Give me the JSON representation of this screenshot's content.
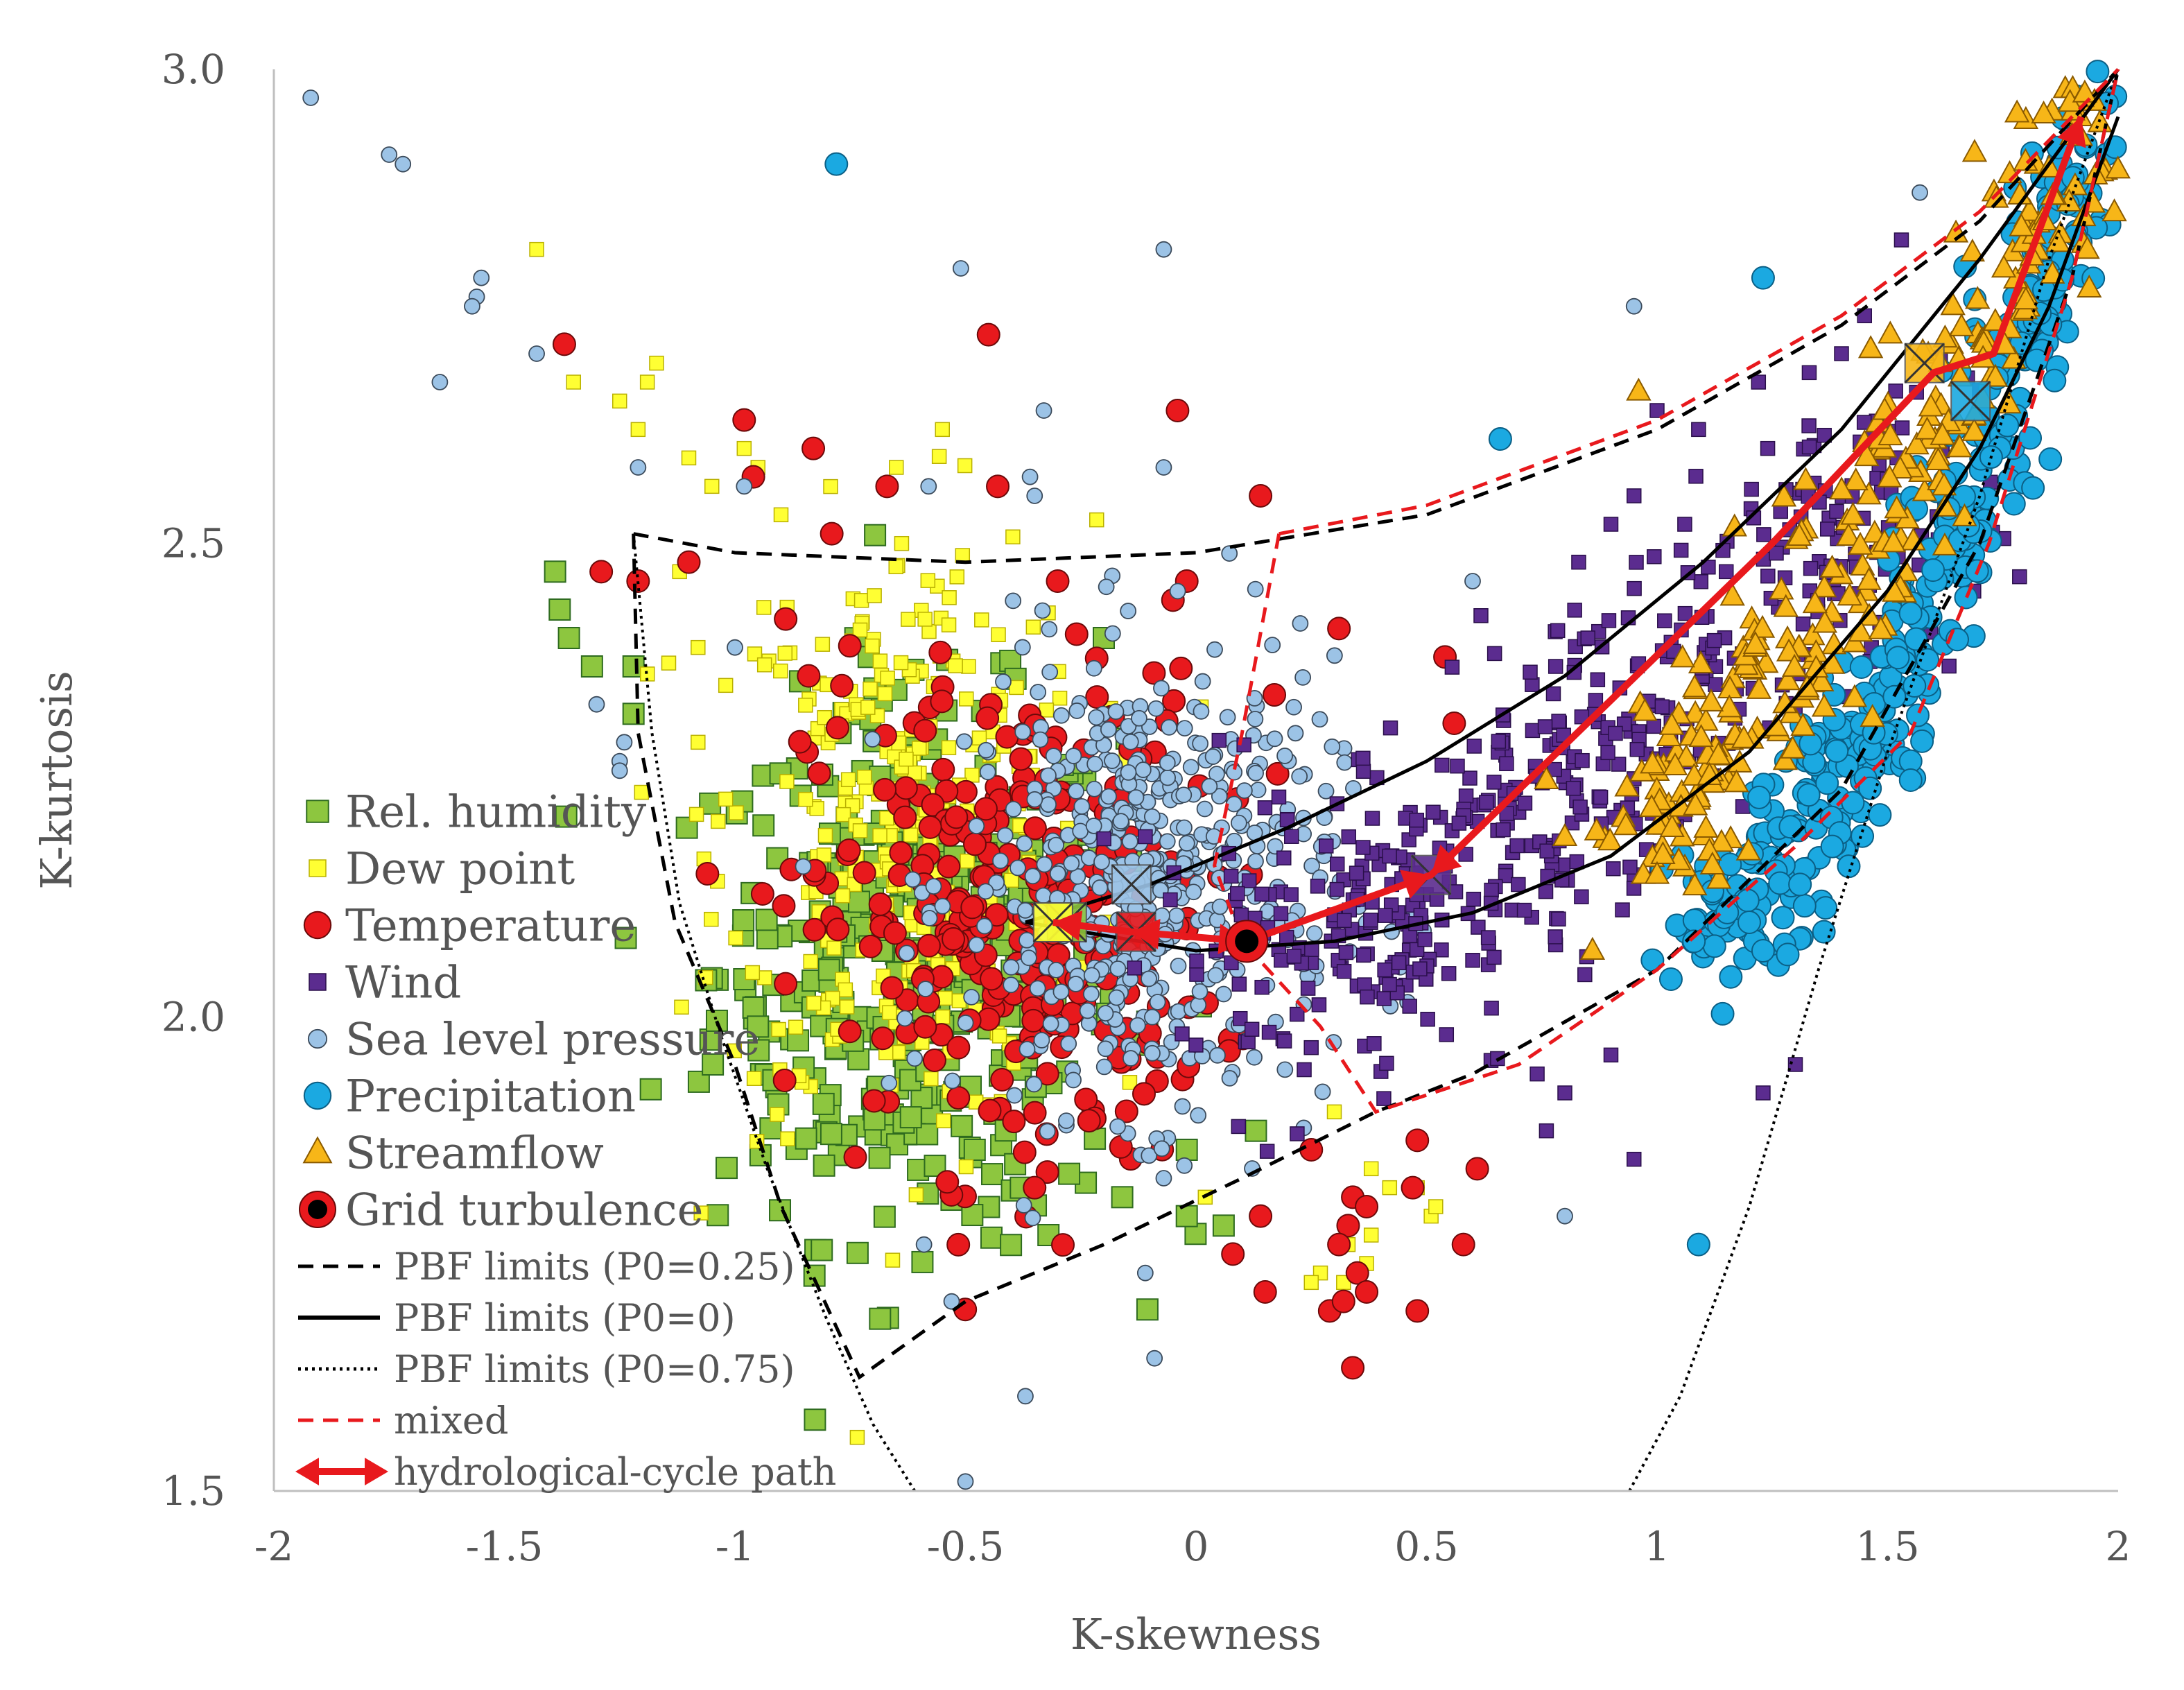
{
  "chart_data": {
    "type": "scatter",
    "title": "",
    "xlabel": "K-skewness",
    "ylabel": "K-kurtosis",
    "xlim": [
      -2,
      2
    ],
    "ylim": [
      1.5,
      3.0
    ],
    "x_ticks": [
      -2,
      -1.5,
      -1,
      -0.5,
      0,
      0.5,
      1,
      1.5,
      2
    ],
    "x_tick_labels": [
      "-2",
      "-1.5",
      "-1",
      "-0.5",
      "0",
      "0.5",
      "1",
      "1.5",
      "2"
    ],
    "y_ticks": [
      1.5,
      2.0,
      2.5,
      3.0
    ],
    "y_tick_labels": [
      "1.5",
      "2.0",
      "2.5",
      "3.0"
    ],
    "grid": false,
    "legend_position": "left",
    "series": [
      {
        "name": "Rel. humidity",
        "marker": "square",
        "color": "#8dc63f",
        "center": [
          -0.6,
          2.05
        ],
        "spread": [
          0.22,
          0.14
        ],
        "n": 420,
        "mean": [
          -0.28,
          2.1
        ],
        "outliers": [
          [
            -1.39,
            2.47
          ],
          [
            -1.38,
            2.43
          ],
          [
            -1.36,
            2.4
          ],
          [
            -1.31,
            2.37
          ],
          [
            -1.22,
            2.37
          ],
          [
            -1.22,
            2.32
          ],
          [
            -0.78,
            2.09
          ],
          [
            -0.68,
            2.07
          ],
          [
            -0.98,
            2.04
          ],
          [
            -0.96,
            2.01
          ],
          [
            -0.95,
            1.99
          ],
          [
            -0.48,
            1.86
          ],
          [
            -0.38,
            1.82
          ],
          [
            -0.32,
            1.77
          ],
          [
            -0.16,
            1.81
          ],
          [
            -0.02,
            1.86
          ],
          [
            -0.02,
            1.79
          ],
          [
            0.06,
            1.78
          ],
          [
            0.13,
            1.88
          ],
          [
            -0.71,
            2.38
          ],
          [
            -0.2,
            2.4
          ]
        ]
      },
      {
        "name": "Dew point",
        "marker": "square-small",
        "color": "#ffff33",
        "center": [
          -0.62,
          2.2
        ],
        "spread": [
          0.2,
          0.16
        ],
        "n": 320,
        "mean": [
          -0.31,
          2.1
        ],
        "outliers": [
          [
            -1.43,
            2.81
          ],
          [
            -1.35,
            2.67
          ],
          [
            -1.25,
            2.65
          ],
          [
            -1.19,
            2.67
          ],
          [
            -1.17,
            2.69
          ],
          [
            -1.21,
            2.62
          ],
          [
            -1.1,
            2.59
          ],
          [
            -1.05,
            2.56
          ],
          [
            -0.98,
            2.6
          ],
          [
            -0.95,
            2.58
          ],
          [
            -0.9,
            2.53
          ],
          [
            -1.12,
            2.47
          ],
          [
            -1.08,
            2.39
          ],
          [
            -1.02,
            2.35
          ],
          [
            -1.08,
            2.29
          ],
          [
            -1.02,
            2.23
          ],
          [
            0.02,
            1.81
          ],
          [
            0.3,
            1.9
          ],
          [
            0.38,
            1.84
          ],
          [
            0.42,
            1.82
          ],
          [
            0.48,
            1.82
          ],
          [
            0.51,
            1.79
          ],
          [
            0.52,
            1.8
          ],
          [
            0.38,
            1.77
          ],
          [
            0.33,
            1.76
          ],
          [
            0.37,
            1.74
          ],
          [
            0.27,
            1.73
          ],
          [
            0.25,
            1.72
          ],
          [
            0.32,
            1.72
          ],
          [
            -0.55,
            2.62
          ],
          [
            -0.65,
            2.58
          ]
        ]
      },
      {
        "name": "Temperature",
        "marker": "circle",
        "color": "#e8191d",
        "center": [
          -0.4,
          2.1
        ],
        "spread": [
          0.22,
          0.13
        ],
        "n": 300,
        "mean": [
          -0.13,
          2.09
        ],
        "outliers": [
          [
            -1.37,
            2.71
          ],
          [
            -0.45,
            2.72
          ],
          [
            -0.98,
            2.63
          ],
          [
            -0.83,
            2.6
          ],
          [
            -0.67,
            2.56
          ],
          [
            -0.43,
            2.56
          ],
          [
            -0.96,
            2.57
          ],
          [
            -0.04,
            2.64
          ],
          [
            0.14,
            2.55
          ],
          [
            -0.79,
            2.51
          ],
          [
            -1.1,
            2.48
          ],
          [
            -1.29,
            2.47
          ],
          [
            -1.21,
            2.46
          ],
          [
            -0.3,
            2.46
          ],
          [
            -0.02,
            2.46
          ],
          [
            -0.05,
            2.44
          ],
          [
            -0.89,
            2.42
          ],
          [
            -0.84,
            2.36
          ],
          [
            0.31,
            2.41
          ],
          [
            0.54,
            2.38
          ],
          [
            0.17,
            2.34
          ],
          [
            0.56,
            2.31
          ],
          [
            -0.94,
            2.13
          ],
          [
            -0.35,
            1.82
          ],
          [
            0.25,
            1.86
          ],
          [
            0.34,
            1.81
          ],
          [
            0.48,
            1.87
          ],
          [
            0.61,
            1.84
          ],
          [
            0.33,
            1.78
          ],
          [
            0.37,
            1.8
          ],
          [
            0.31,
            1.76
          ],
          [
            0.58,
            1.76
          ],
          [
            0.14,
            1.79
          ],
          [
            0.35,
            1.73
          ],
          [
            0.37,
            1.71
          ],
          [
            0.15,
            1.71
          ],
          [
            0.29,
            1.69
          ],
          [
            0.32,
            1.7
          ],
          [
            0.48,
            1.69
          ],
          [
            0.34,
            1.63
          ],
          [
            0.08,
            1.75
          ],
          [
            0.47,
            1.82
          ]
        ]
      },
      {
        "name": "Wind",
        "marker": "square-small",
        "color": "#5b2c8f",
        "center": [
          0.7,
          2.12
        ],
        "spread": [
          0.27,
          0.1
        ],
        "n": 520,
        "mean": [
          0.51,
          2.15
        ],
        "outliers": [
          [
            1.53,
            2.82
          ],
          [
            1.4,
            2.7
          ],
          [
            1.33,
            2.68
          ],
          [
            1.22,
            2.67
          ],
          [
            1.0,
            2.64
          ],
          [
            0.95,
            2.55
          ],
          [
            0.9,
            2.52
          ],
          [
            0.83,
            2.48
          ],
          [
            1.06,
            2.52
          ],
          [
            1.15,
            2.47
          ],
          [
            0.85,
            2.4
          ],
          [
            0.78,
            2.37
          ],
          [
            1.3,
            1.95
          ],
          [
            1.23,
            1.92
          ],
          [
            0.9,
            1.96
          ],
          [
            0.76,
            1.88
          ],
          [
            0.95,
            1.85
          ],
          [
            0.8,
            1.92
          ],
          [
            0.74,
            1.94
          ],
          [
            1.24,
            2.6
          ],
          [
            1.09,
            2.62
          ],
          [
            1.45,
            2.74
          ]
        ]
      },
      {
        "name": "Sea level pressure",
        "marker": "circle-small",
        "color": "#9cc3e6",
        "center": [
          -0.1,
          2.14
        ],
        "spread": [
          0.2,
          0.12
        ],
        "n": 520,
        "mean": [
          -0.14,
          2.14
        ],
        "outliers": [
          [
            -1.92,
            2.97
          ],
          [
            -1.75,
            2.91
          ],
          [
            -1.72,
            2.9
          ],
          [
            -1.56,
            2.76
          ],
          [
            -1.57,
            2.75
          ],
          [
            -1.64,
            2.67
          ],
          [
            -1.43,
            2.7
          ],
          [
            -0.51,
            2.79
          ],
          [
            -0.07,
            2.81
          ],
          [
            -0.33,
            2.64
          ],
          [
            -1.21,
            2.58
          ],
          [
            -0.98,
            2.56
          ],
          [
            -0.58,
            2.56
          ],
          [
            -0.36,
            2.57
          ],
          [
            -0.35,
            2.55
          ],
          [
            -0.07,
            2.58
          ],
          [
            -1.3,
            2.33
          ],
          [
            -1.25,
            2.27
          ],
          [
            -1.24,
            2.29
          ],
          [
            -1.25,
            2.26
          ],
          [
            -1.0,
            2.39
          ],
          [
            0.95,
            2.75
          ],
          [
            1.57,
            2.87
          ],
          [
            0.6,
            2.46
          ],
          [
            -0.07,
            1.83
          ],
          [
            -0.59,
            1.76
          ],
          [
            -0.53,
            1.7
          ],
          [
            -0.11,
            1.73
          ],
          [
            -0.09,
            1.64
          ],
          [
            -0.37,
            1.6
          ],
          [
            -0.5,
            1.51
          ],
          [
            0.8,
            1.79
          ],
          [
            -1.55,
            2.78
          ]
        ]
      },
      {
        "name": "Precipitation",
        "marker": "circle",
        "color": "#1ba9e1",
        "center": [
          1.42,
          2.38
        ],
        "spread": [
          0.18,
          0.12
        ],
        "n": 380,
        "mean": [
          1.68,
          2.65
        ],
        "outliers": [
          [
            -0.78,
            2.9
          ],
          [
            0.66,
            2.61
          ],
          [
            1.23,
            2.78
          ],
          [
            1.93,
            2.92
          ],
          [
            1.55,
            2.27
          ],
          [
            1.47,
            2.3
          ],
          [
            1.38,
            2.18
          ],
          [
            1.31,
            2.14
          ],
          [
            1.2,
            2.1
          ],
          [
            1.08,
            2.08
          ],
          [
            0.99,
            2.06
          ],
          [
            1.03,
            2.04
          ],
          [
            1.23,
            2.07
          ],
          [
            1.09,
            1.76
          ],
          [
            1.55,
            2.25
          ]
        ]
      },
      {
        "name": "Streamflow",
        "marker": "triangle",
        "color": "#f7b618",
        "center": [
          1.5,
          2.47
        ],
        "spread": [
          0.18,
          0.14
        ],
        "n": 300,
        "mean": [
          1.58,
          2.69
        ],
        "outliers": [
          [
            0.96,
            2.66
          ],
          [
            0.8,
            2.19
          ],
          [
            0.76,
            2.25
          ],
          [
            0.86,
            2.07
          ],
          [
            0.97,
            2.15
          ],
          [
            1.12,
            2.16
          ],
          [
            1.0,
            2.15
          ]
        ]
      }
    ],
    "grid_turbulence": {
      "name": "Grid turbulence",
      "x": 0.11,
      "y": 2.08,
      "color": "#e8191d",
      "center_color": "#000000"
    },
    "hydrological_cycle_path": {
      "name": "hydrological-cycle path",
      "color": "#e8191d",
      "points": [
        [
          -0.31,
          2.1
        ],
        [
          -0.14,
          2.09
        ],
        [
          0.11,
          2.08
        ],
        [
          0.51,
          2.15
        ],
        [
          1.25,
          2.5
        ],
        [
          1.6,
          2.68
        ],
        [
          1.73,
          2.7
        ],
        [
          1.92,
          2.95
        ]
      ]
    },
    "lines": [
      {
        "name": "PBF limits (P0=0.25)",
        "style": "dashed",
        "color": "#000000",
        "points": [
          [
            -1.22,
            2.51
          ],
          [
            -1.0,
            2.49
          ],
          [
            -0.5,
            2.48
          ],
          [
            0.0,
            2.49
          ],
          [
            0.5,
            2.53
          ],
          [
            1.0,
            2.62
          ],
          [
            1.4,
            2.73
          ],
          [
            1.7,
            2.84
          ],
          [
            2.0,
            3.0
          ]
        ],
        "points2": [
          [
            -1.22,
            2.51
          ],
          [
            -1.21,
            2.3
          ],
          [
            -1.13,
            2.1
          ],
          [
            -1.0,
            1.95
          ],
          [
            -0.9,
            1.8
          ],
          [
            -0.73,
            1.62
          ],
          [
            -0.5,
            1.7
          ],
          [
            -0.2,
            1.76
          ],
          [
            0.1,
            1.83
          ],
          [
            0.39,
            1.9
          ],
          [
            0.6,
            1.94
          ],
          [
            1.0,
            2.05
          ],
          [
            1.4,
            2.24
          ],
          [
            1.7,
            2.5
          ],
          [
            1.9,
            2.78
          ],
          [
            2.0,
            3.0
          ]
        ]
      },
      {
        "name": "PBF limits (P0=0)",
        "style": "solid",
        "color": "#000000",
        "points": [
          [
            -0.37,
            2.1
          ],
          [
            -0.1,
            2.14
          ],
          [
            0.2,
            2.2
          ],
          [
            0.5,
            2.27
          ],
          [
            0.8,
            2.36
          ],
          [
            1.1,
            2.48
          ],
          [
            1.4,
            2.62
          ],
          [
            1.7,
            2.8
          ],
          [
            2.0,
            3.0
          ]
        ],
        "points2": [
          [
            -0.37,
            2.1
          ],
          [
            0.0,
            2.07
          ],
          [
            0.3,
            2.08
          ],
          [
            0.6,
            2.11
          ],
          [
            0.9,
            2.17
          ],
          [
            1.2,
            2.28
          ],
          [
            1.5,
            2.45
          ],
          [
            1.7,
            2.6
          ],
          [
            1.85,
            2.75
          ],
          [
            2.0,
            2.95
          ]
        ]
      },
      {
        "name": "PBF limits (P0=0.75)",
        "style": "dotted",
        "color": "#000000",
        "points": [
          [
            -0.61,
            1.5
          ],
          [
            -0.7,
            1.57
          ],
          [
            -0.8,
            1.68
          ],
          [
            -0.93,
            1.84
          ],
          [
            -1.03,
            1.98
          ],
          [
            -1.12,
            2.12
          ],
          [
            -1.18,
            2.3
          ],
          [
            -1.22,
            2.51
          ]
        ],
        "points2": [
          [
            0.94,
            1.5
          ],
          [
            1.05,
            1.6
          ],
          [
            1.2,
            1.8
          ],
          [
            1.35,
            2.05
          ],
          [
            1.5,
            2.28
          ],
          [
            1.7,
            2.55
          ],
          [
            1.85,
            2.8
          ],
          [
            2.0,
            3.0
          ]
        ]
      },
      {
        "name": "mixed",
        "style": "dashed",
        "color": "#e8191d",
        "points": [
          [
            0.18,
            2.51
          ],
          [
            0.5,
            2.54
          ],
          [
            1.0,
            2.63
          ],
          [
            1.4,
            2.74
          ],
          [
            1.7,
            2.85
          ],
          [
            2.0,
            3.0
          ]
        ],
        "points2": [
          [
            0.18,
            2.51
          ],
          [
            0.1,
            2.3
          ],
          [
            0.04,
            2.16
          ],
          [
            0.1,
            2.08
          ],
          [
            0.27,
            1.99
          ],
          [
            0.39,
            1.9
          ],
          [
            0.7,
            1.95
          ],
          [
            1.0,
            2.05
          ],
          [
            1.3,
            2.18
          ],
          [
            1.55,
            2.3
          ],
          [
            1.72,
            2.5
          ],
          [
            1.9,
            2.78
          ],
          [
            2.0,
            3.0
          ]
        ]
      }
    ]
  }
}
